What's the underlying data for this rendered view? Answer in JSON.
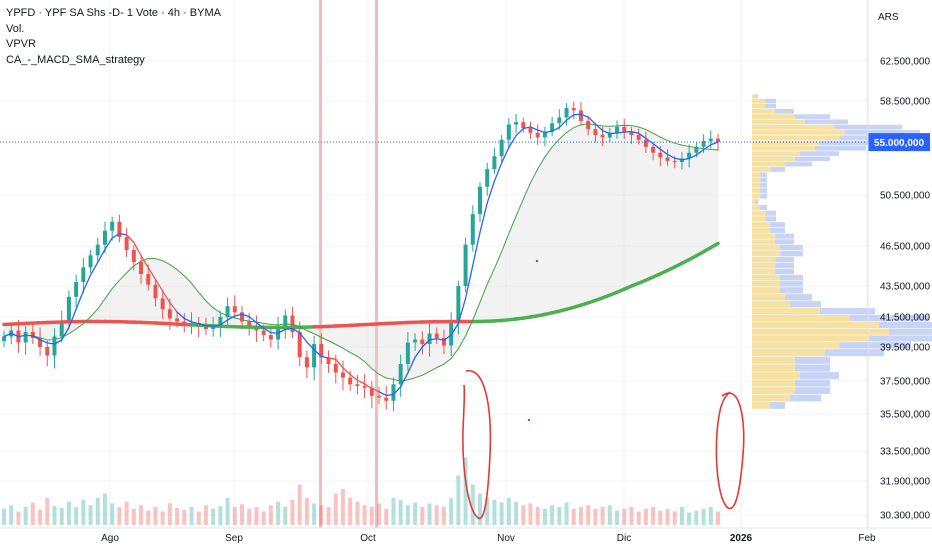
{
  "legend": {
    "title": "YPFD · YPF SA Shs -D- 1 Vote · 4h · BYMA",
    "lines": [
      "Vol.",
      "VPVR",
      "CA_-_MACD_SMA_strategy"
    ]
  },
  "currency": "ARS",
  "colors": {
    "up": "#26a69a",
    "down": "#ef5350",
    "sma_red": "#ef5350",
    "sma_green": "#4caf50",
    "blue_line": "#2962ff",
    "green_thin": "#43a047",
    "fill": "#d9d9d9",
    "current_price": "#2962ff",
    "vline": "#f8a8a8",
    "annotation": "#e53935",
    "vpvr_up": "#f5d98b",
    "vpvr_down": "#b9c9f2"
  },
  "chart_data": {
    "type": "candlestick",
    "y_ticks": [
      "62.500,000",
      "58.500,000",
      "50.500,000",
      "46.500,000",
      "43.500,000",
      "41.500,000",
      "39.500,000",
      "37.500,000",
      "35.500,000",
      "33.500,000",
      "31.900,000",
      "30.300,000"
    ],
    "y_tick_values": [
      62500,
      58500,
      50500,
      46500,
      43500,
      41500,
      39500,
      37500,
      35500,
      33500,
      31900,
      30300
    ],
    "x_ticks": [
      {
        "label": "Ago",
        "bold": false
      },
      {
        "label": "Sep",
        "bold": false
      },
      {
        "label": "Oct",
        "bold": false
      },
      {
        "label": "Nov",
        "bold": false
      },
      {
        "label": "Dic",
        "bold": false
      },
      {
        "label": "2026",
        "bold": true
      },
      {
        "label": "Feb",
        "bold": false
      }
    ],
    "current_price": 55000,
    "current_price_label": "55.000,000",
    "closes": [
      40200,
      40600,
      39800,
      40500,
      40100,
      39500,
      39000,
      40200,
      41200,
      42800,
      43800,
      44900,
      45800,
      46600,
      47700,
      48400,
      47200,
      46200,
      45300,
      44400,
      43600,
      42700,
      42000,
      41400,
      41200,
      41000,
      41100,
      40900,
      40700,
      40800,
      41500,
      42200,
      41800,
      41200,
      40900,
      40600,
      40300,
      40000,
      40800,
      41600,
      40500,
      38900,
      38300,
      39700,
      38900,
      38500,
      38000,
      37700,
      37300,
      37200,
      37100,
      36600,
      36500,
      36300,
      37300,
      38500,
      39800,
      40000,
      39700,
      40400,
      40100,
      39600,
      41100,
      43500,
      46600,
      49000,
      51200,
      52700,
      53800,
      55200,
      56500,
      56700,
      56200,
      55800,
      55400,
      55900,
      56600,
      57100,
      57900,
      57700,
      56800,
      56100,
      55600,
      55400,
      55800,
      56300,
      55900,
      55600,
      55200,
      54600,
      54100,
      53700,
      53400,
      53300,
      53600,
      54100,
      54600,
      55100,
      55300,
      55000
    ],
    "volumes": [
      0.18,
      0.22,
      0.15,
      0.2,
      0.25,
      0.17,
      0.3,
      0.21,
      0.19,
      0.26,
      0.2,
      0.28,
      0.22,
      0.3,
      0.35,
      0.24,
      0.2,
      0.26,
      0.18,
      0.22,
      0.16,
      0.2,
      0.15,
      0.24,
      0.19,
      0.17,
      0.2,
      0.15,
      0.22,
      0.18,
      0.21,
      0.3,
      0.2,
      0.23,
      0.18,
      0.2,
      0.15,
      0.22,
      0.26,
      0.2,
      0.28,
      0.45,
      0.3,
      0.24,
      0.22,
      0.2,
      0.35,
      0.4,
      0.3,
      0.26,
      0.22,
      0.2,
      0.24,
      0.18,
      0.3,
      0.28,
      0.22,
      0.25,
      0.2,
      0.24,
      0.22,
      0.2,
      0.3,
      0.55,
      0.75,
      0.45,
      0.35,
      0.3,
      0.28,
      0.25,
      0.3,
      0.26,
      0.22,
      0.24,
      0.2,
      0.18,
      0.22,
      0.2,
      0.25,
      0.18,
      0.2,
      0.22,
      0.18,
      0.2,
      0.22,
      0.16,
      0.18,
      0.2,
      0.15,
      0.18,
      0.2,
      0.16,
      0.18,
      0.15,
      0.2,
      0.14,
      0.16,
      0.18,
      0.2,
      0.15
    ]
  }
}
